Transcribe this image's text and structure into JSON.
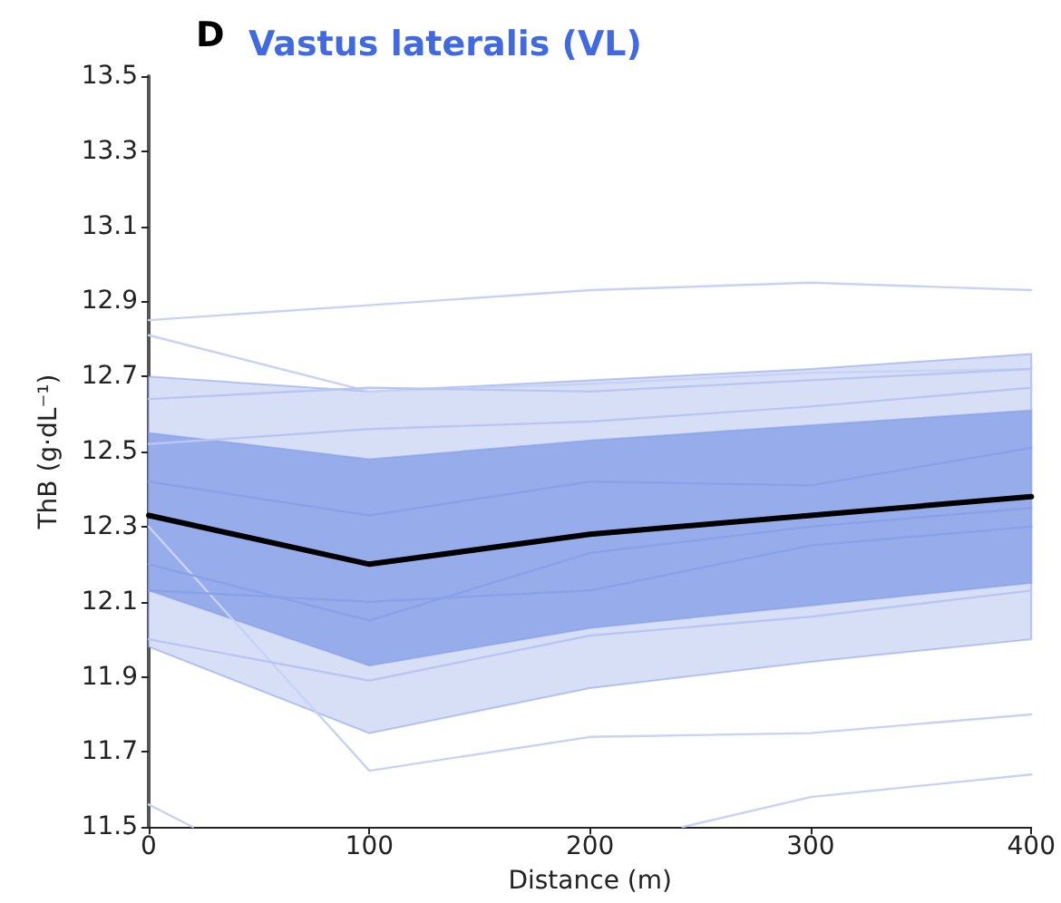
{
  "chart_data": {
    "type": "line",
    "title": "Vastus lateralis (VL)",
    "annotations": [
      "D"
    ],
    "xlabel": "Distance (m)",
    "ylabel": "ThB (g·dL⁻¹)",
    "x": [
      0,
      100,
      200,
      300,
      400
    ],
    "xlim": [
      0,
      400
    ],
    "xticks": [
      0,
      100,
      200,
      300,
      400
    ],
    "ylim": [
      11.5,
      13.5
    ],
    "yticks": [
      11.5,
      11.7,
      11.9,
      12.1,
      12.3,
      12.5,
      12.7,
      12.9,
      13.1,
      13.3,
      13.5
    ],
    "grid": false,
    "marker": "none",
    "line_style": "solid",
    "series": [
      {
        "color": "#d7dff7",
        "values": [
          null,
          null,
          null,
          null,
          null
        ],
        "lower": [
          11.98,
          11.75,
          11.87,
          11.94,
          12.0
        ],
        "upper": [
          12.7,
          12.66,
          12.69,
          12.72,
          12.76
        ]
      },
      {
        "color": "#c7d2f7",
        "values": [
          12.85,
          12.89,
          12.93,
          12.95,
          12.93
        ]
      },
      {
        "color": "#c7d2f7",
        "values": [
          12.81,
          12.66,
          12.68,
          12.71,
          12.72
        ]
      },
      {
        "color": "#b9c6f4",
        "values": [
          12.64,
          12.67,
          12.66,
          12.69,
          12.72
        ]
      },
      {
        "color": "#b9c6f4",
        "values": [
          12.52,
          12.56,
          12.58,
          12.62,
          12.67
        ]
      },
      {
        "color": "#8aa1e8",
        "values": [
          12.42,
          12.33,
          12.42,
          12.41,
          12.51
        ]
      },
      {
        "color": "#c7d2f7",
        "values": [
          12.3,
          11.65,
          11.74,
          11.75,
          11.8
        ]
      },
      {
        "color": "#8aa1e8",
        "values": [
          12.2,
          12.05,
          12.23,
          12.3,
          12.35
        ]
      },
      {
        "color": "#8aa1e8",
        "values": [
          12.13,
          12.1,
          12.13,
          12.25,
          12.3
        ]
      },
      {
        "color": "#b9c6f4",
        "values": [
          12.0,
          11.89,
          12.01,
          12.06,
          12.13
        ]
      },
      {
        "color": "#c7d2f7",
        "x": [
          0,
          20,
          100,
          242,
          300,
          400
        ],
        "values": [
          11.56,
          11.5,
          null,
          11.5,
          11.58,
          11.64
        ]
      },
      {
        "color": "#000000",
        "values": [
          12.33,
          12.2,
          12.28,
          12.33,
          12.38
        ],
        "lower": [
          12.13,
          11.93,
          12.03,
          12.09,
          12.15
        ],
        "upper": [
          12.55,
          12.48,
          12.53,
          12.57,
          12.61
        ]
      }
    ]
  }
}
